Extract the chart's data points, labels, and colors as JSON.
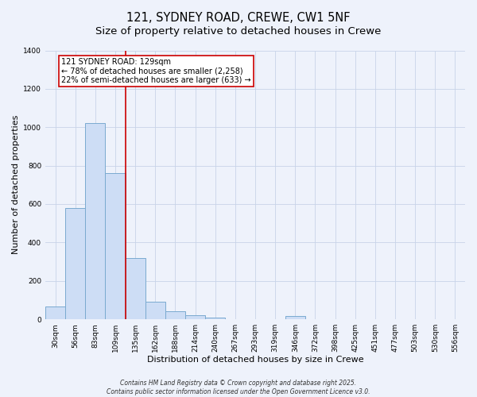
{
  "title": "121, SYDNEY ROAD, CREWE, CW1 5NF",
  "subtitle": "Size of property relative to detached houses in Crewe",
  "xlabel": "Distribution of detached houses by size in Crewe",
  "ylabel": "Number of detached properties",
  "bin_labels": [
    "30sqm",
    "56sqm",
    "83sqm",
    "109sqm",
    "135sqm",
    "162sqm",
    "188sqm",
    "214sqm",
    "240sqm",
    "267sqm",
    "293sqm",
    "319sqm",
    "346sqm",
    "372sqm",
    "398sqm",
    "425sqm",
    "451sqm",
    "477sqm",
    "503sqm",
    "530sqm",
    "556sqm"
  ],
  "bar_values": [
    65,
    580,
    1020,
    760,
    320,
    90,
    40,
    20,
    10,
    0,
    0,
    0,
    15,
    0,
    0,
    0,
    0,
    0,
    0,
    0,
    0
  ],
  "bar_color": "#cdddf5",
  "bar_edge_color": "#7aaad0",
  "vline_x_index": 4,
  "vline_color": "#cc0000",
  "annotation_title": "121 SYDNEY ROAD: 129sqm",
  "annotation_line1": "← 78% of detached houses are smaller (2,258)",
  "annotation_line2": "22% of semi-detached houses are larger (633) →",
  "annotation_box_color": "#ffffff",
  "annotation_box_edge": "#cc0000",
  "ylim": [
    0,
    1400
  ],
  "yticks": [
    0,
    200,
    400,
    600,
    800,
    1000,
    1200,
    1400
  ],
  "footer1": "Contains HM Land Registry data © Crown copyright and database right 2025.",
  "footer2": "Contains public sector information licensed under the Open Government Licence v3.0.",
  "background_color": "#eef2fb",
  "grid_color": "#c8d4e8",
  "title_fontsize": 10.5,
  "axis_label_fontsize": 8,
  "tick_fontsize": 6.5,
  "annotation_fontsize": 7,
  "footer_fontsize": 5.5
}
